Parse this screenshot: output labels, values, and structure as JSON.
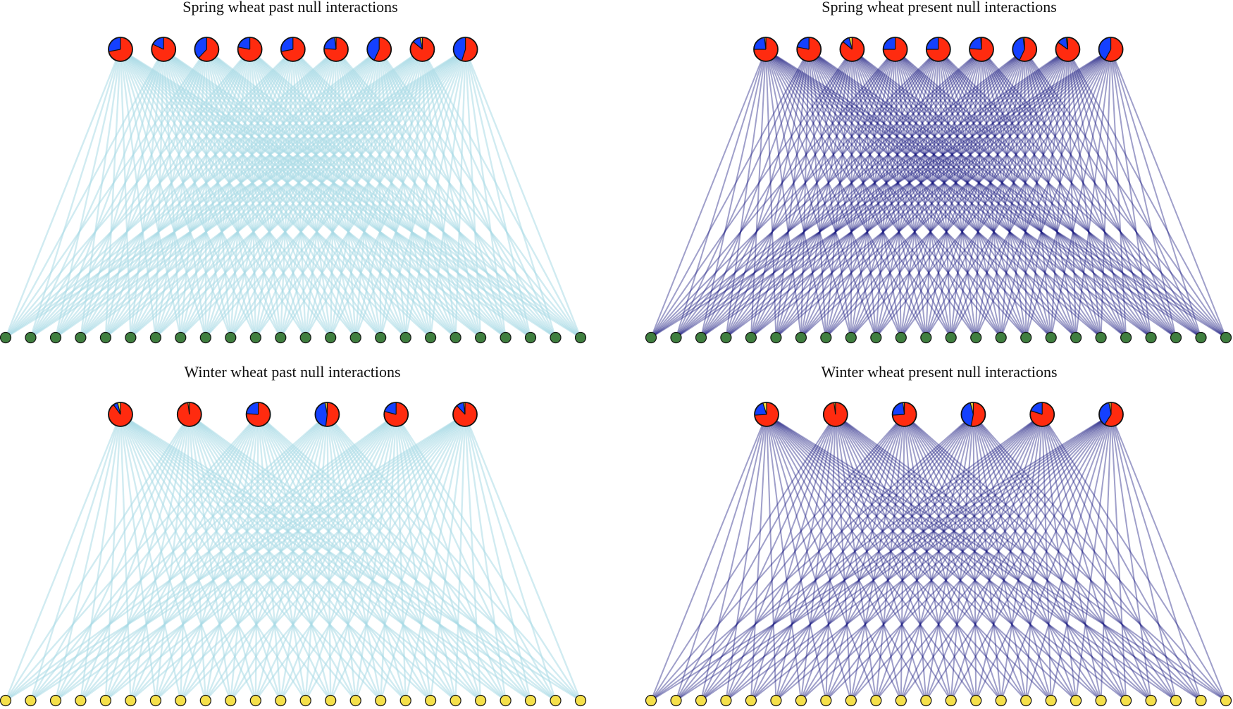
{
  "colors": {
    "past_edge": "#a9dbe6",
    "present_edge": "#1a1a80",
    "pie_red": "#ff2b0f",
    "pie_blue": "#1440ff",
    "pie_yellow": "#f0e040",
    "spring_node": "#3f7f3f",
    "winter_node": "#f5e04a",
    "node_outline": "#111111"
  },
  "panels": [
    {
      "id": "spring-past",
      "title": "Spring wheat past null interactions",
      "edge_style": "past",
      "bottom_node_color": "spring",
      "top_node_count": 9,
      "bottom_node_count": 24,
      "pies": [
        [
          0.72,
          0.28,
          0.0
        ],
        [
          0.82,
          0.18,
          0.0
        ],
        [
          0.62,
          0.38,
          0.0
        ],
        [
          0.78,
          0.22,
          0.0
        ],
        [
          0.72,
          0.28,
          0.0
        ],
        [
          0.76,
          0.22,
          0.02
        ],
        [
          0.57,
          0.43,
          0.0
        ],
        [
          0.86,
          0.11,
          0.03
        ],
        [
          0.55,
          0.45,
          0.0
        ]
      ]
    },
    {
      "id": "spring-present",
      "title": "Spring wheat present null interactions",
      "edge_style": "present",
      "bottom_node_color": "spring",
      "top_node_count": 9,
      "bottom_node_count": 24,
      "pies": [
        [
          0.75,
          0.23,
          0.02
        ],
        [
          0.78,
          0.22,
          0.0
        ],
        [
          0.86,
          0.1,
          0.04
        ],
        [
          0.75,
          0.25,
          0.0
        ],
        [
          0.75,
          0.25,
          0.0
        ],
        [
          0.76,
          0.23,
          0.01
        ],
        [
          0.57,
          0.41,
          0.02
        ],
        [
          0.85,
          0.13,
          0.02
        ],
        [
          0.58,
          0.42,
          0.0
        ]
      ]
    },
    {
      "id": "winter-past",
      "title": "Winter wheat past null interactions",
      "edge_style": "past",
      "bottom_node_color": "winter",
      "top_node_count": 6,
      "bottom_node_count": 24,
      "pies": [
        [
          0.9,
          0.06,
          0.04
        ],
        [
          0.98,
          0.0,
          0.02
        ],
        [
          0.76,
          0.24,
          0.0
        ],
        [
          0.52,
          0.45,
          0.03
        ],
        [
          0.79,
          0.21,
          0.0
        ],
        [
          0.88,
          0.1,
          0.02
        ]
      ]
    },
    {
      "id": "winter-present",
      "title": "Winter wheat present null interactions",
      "edge_style": "present",
      "bottom_node_color": "winter",
      "top_node_count": 6,
      "bottom_node_count": 24,
      "pies": [
        [
          0.74,
          0.21,
          0.05
        ],
        [
          0.98,
          0.0,
          0.02
        ],
        [
          0.74,
          0.24,
          0.02
        ],
        [
          0.53,
          0.43,
          0.04
        ],
        [
          0.8,
          0.2,
          0.0
        ],
        [
          0.59,
          0.38,
          0.03
        ]
      ]
    }
  ]
}
